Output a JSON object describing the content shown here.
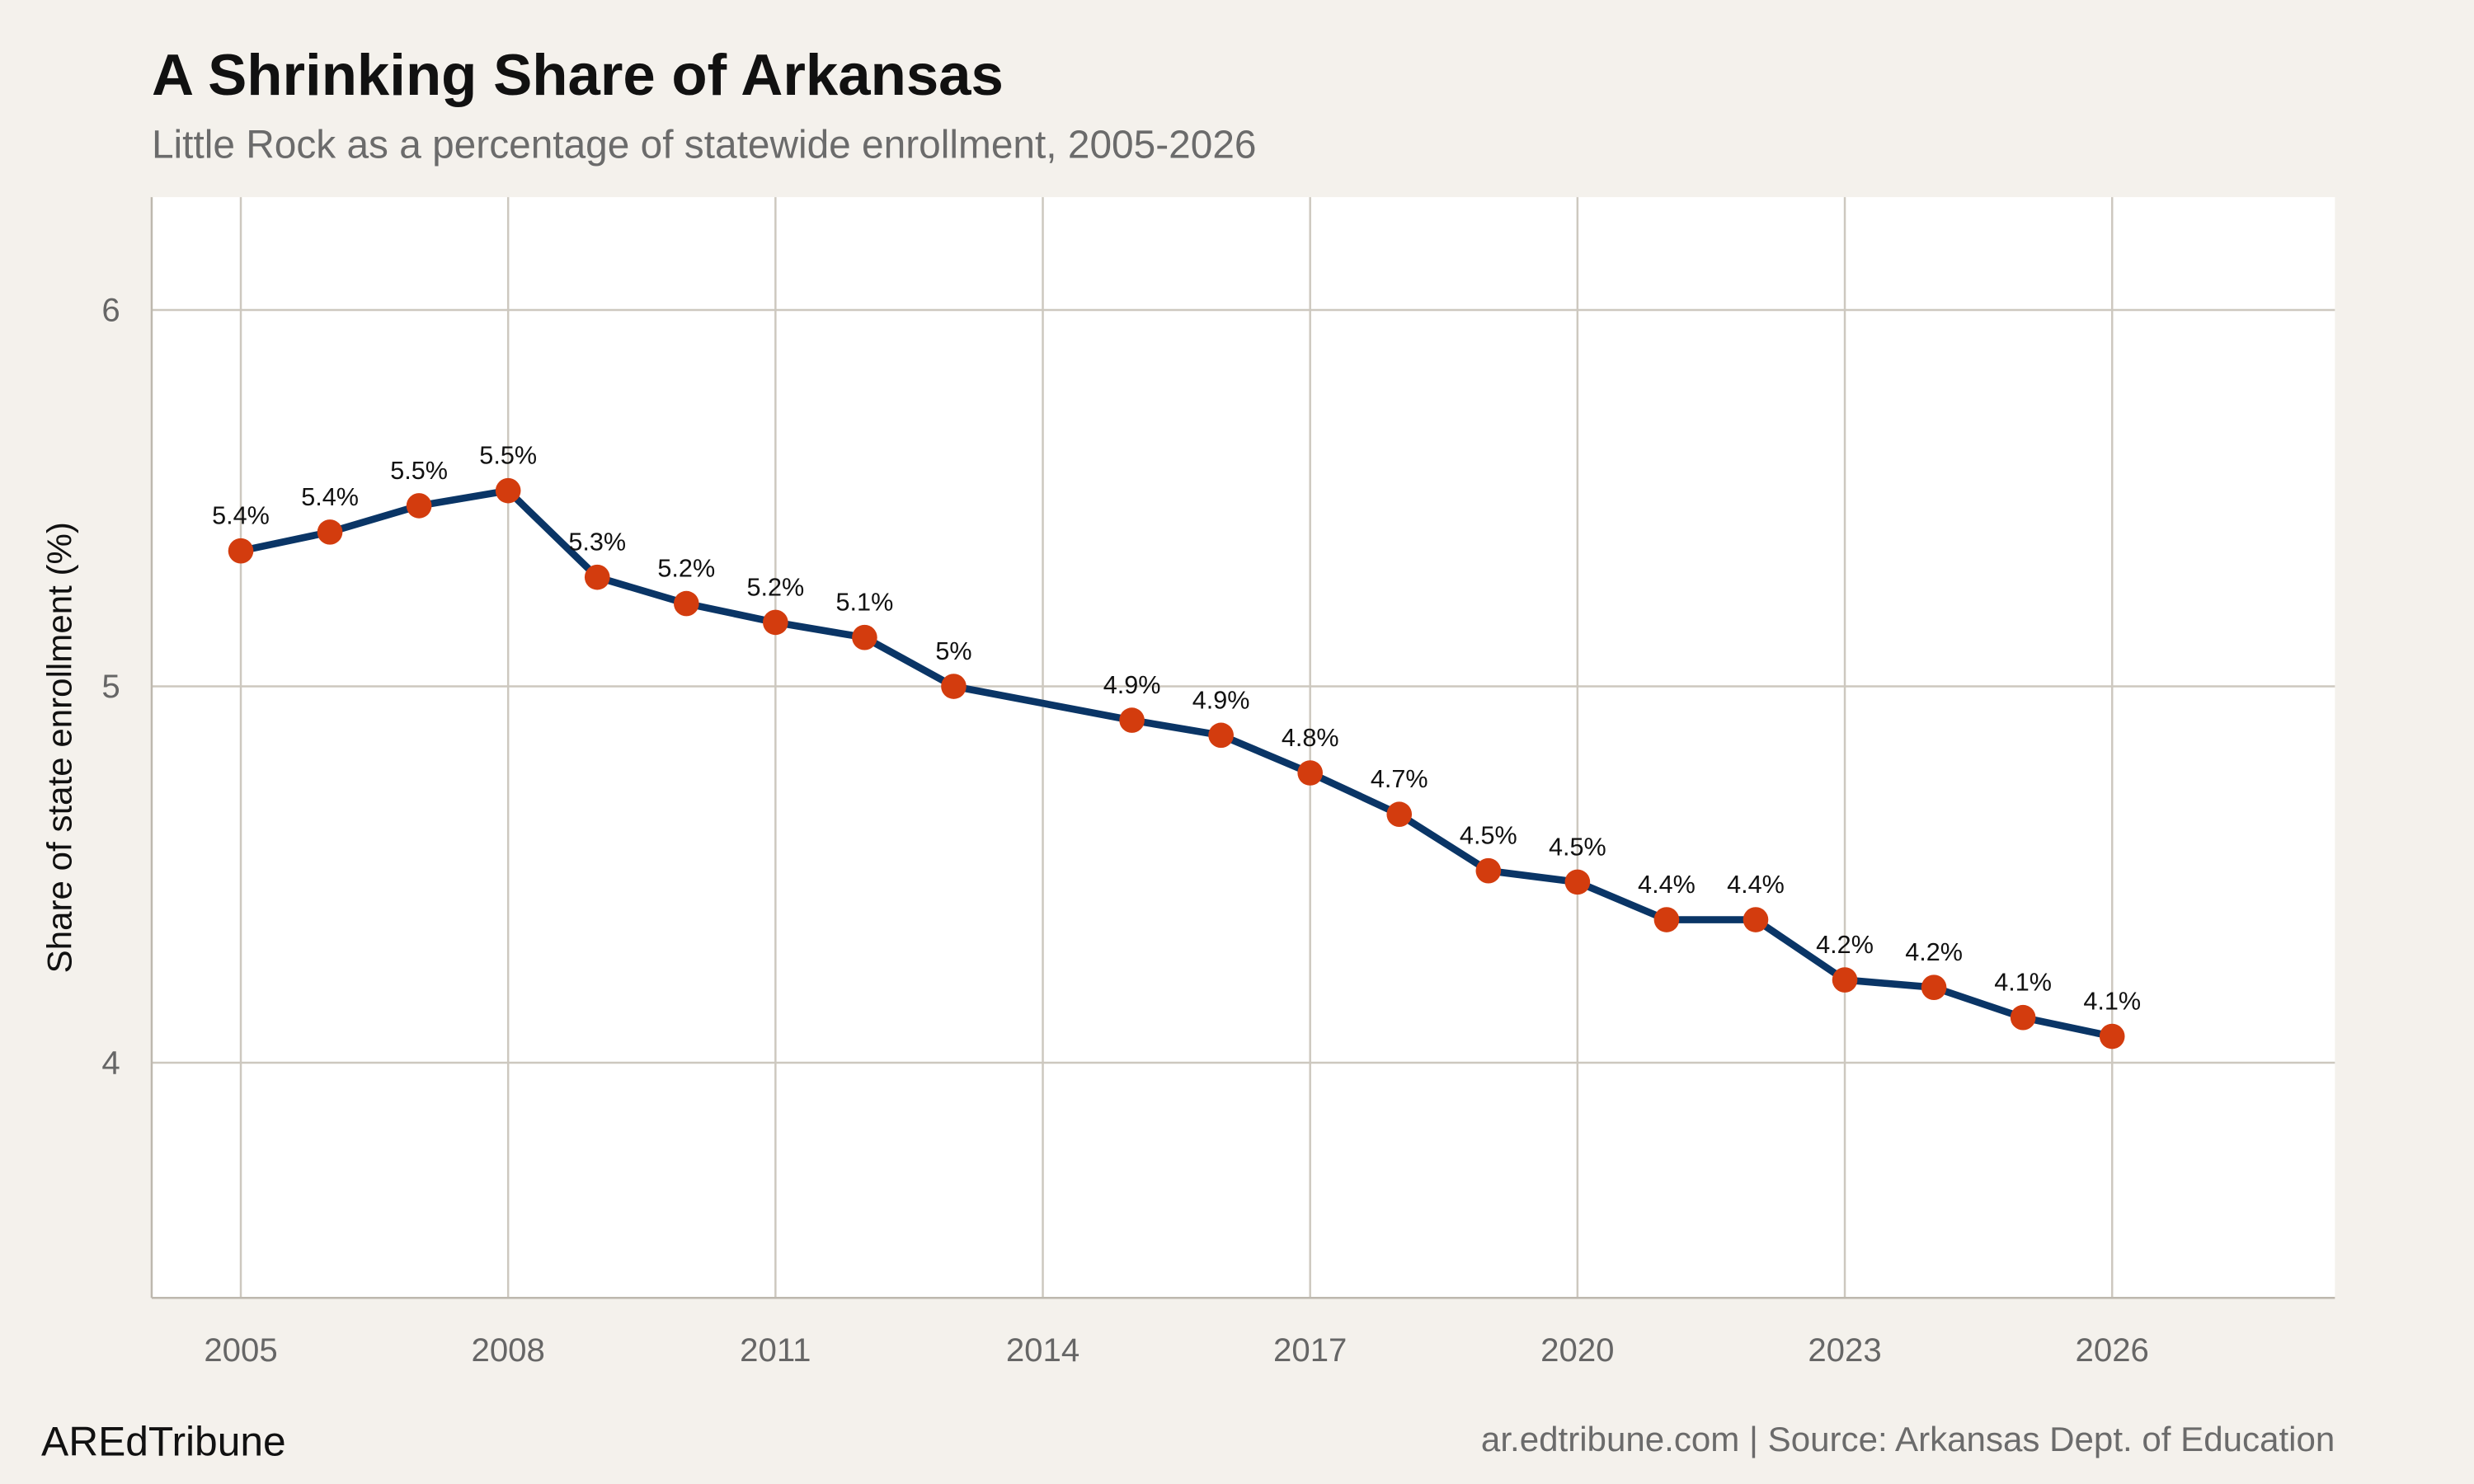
{
  "chart_data": {
    "type": "line",
    "title": "A Shrinking Share of Arkansas",
    "subtitle": "Little Rock as a percentage of statewide enrollment, 2005-2026",
    "xlabel": "",
    "ylabel": "Share of state enrollment (%)",
    "xlim": [
      2004,
      2028.5
    ],
    "ylim": [
      3.375,
      6.3
    ],
    "x_ticks": [
      2005,
      2008,
      2011,
      2014,
      2017,
      2020,
      2023,
      2026
    ],
    "x_tick_labels": [
      "2005",
      "2008",
      "2011",
      "2014",
      "2017",
      "2020",
      "2023",
      "2026"
    ],
    "y_ticks": [
      4,
      5,
      6
    ],
    "y_tick_labels": [
      "4",
      "5",
      "6"
    ],
    "grid": true,
    "legend": "none",
    "x": [
      2005,
      2006,
      2007,
      2008,
      2009,
      2010,
      2011,
      2012,
      2013,
      2015,
      2016,
      2017,
      2018,
      2019,
      2020,
      2021,
      2022,
      2023,
      2024,
      2025,
      2026
    ],
    "values": [
      5.36,
      5.41,
      5.48,
      5.52,
      5.29,
      5.22,
      5.17,
      5.13,
      5.0,
      4.91,
      4.87,
      4.77,
      4.66,
      4.51,
      4.48,
      4.38,
      4.38,
      4.22,
      4.2,
      4.12,
      4.07
    ],
    "data_labels": [
      "5.4%",
      "5.4%",
      "5.5%",
      "5.5%",
      "5.3%",
      "5.2%",
      "5.2%",
      "5.1%",
      "5%",
      "4.9%",
      "4.9%",
      "4.8%",
      "4.7%",
      "4.5%",
      "4.5%",
      "4.4%",
      "4.4%",
      "4.2%",
      "4.2%",
      "4.1%",
      "4.1%"
    ],
    "colors": {
      "line": "#0a3566",
      "points": "#d33c0e",
      "background": "#f4f1ec",
      "panel": "#ffffff",
      "grid": "#cdc8bf"
    }
  },
  "footer": {
    "brand": "AREdTribune",
    "source": "ar.edtribune.com | Source: Arkansas Dept. of Education"
  }
}
